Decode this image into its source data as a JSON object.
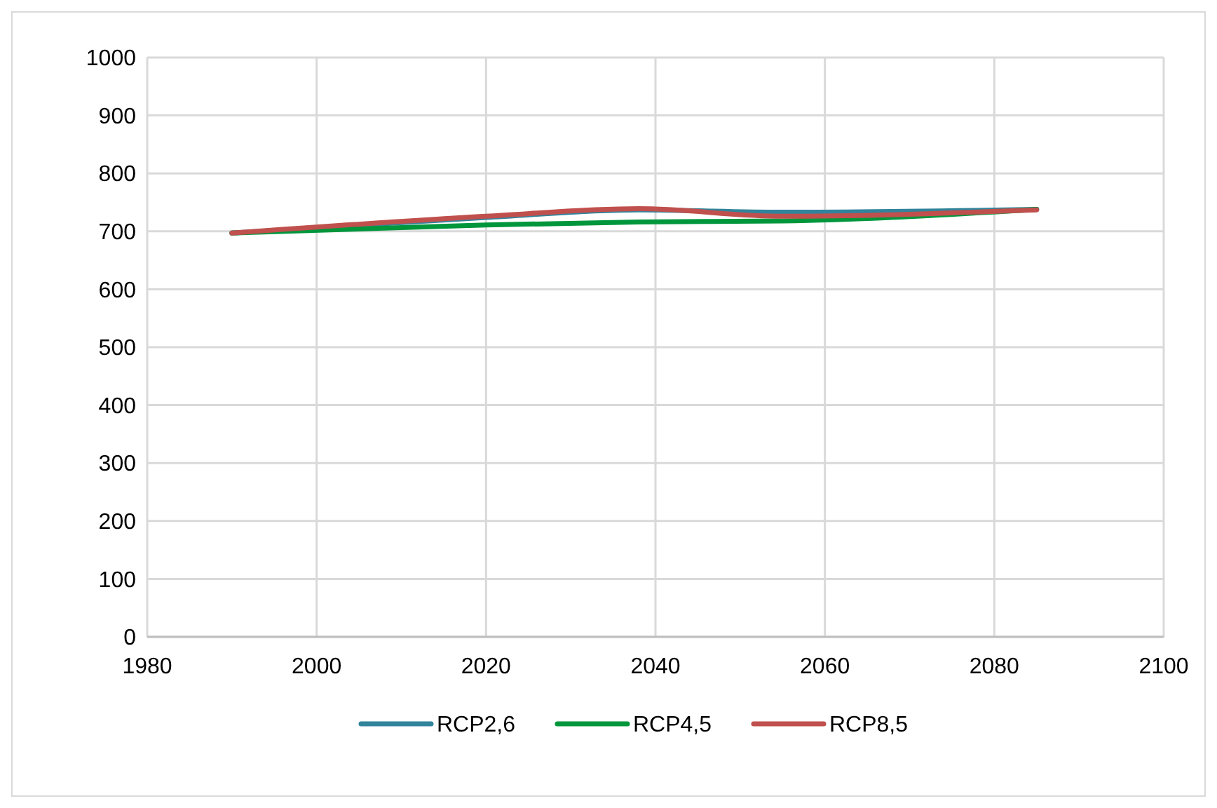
{
  "chart_data": {
    "type": "line",
    "x": [
      1990,
      2020,
      2038,
      2055,
      2085
    ],
    "series": [
      {
        "name": "RCP2,6",
        "color": "#31849b",
        "values": [
          697,
          724,
          737,
          733,
          738
        ]
      },
      {
        "name": "RCP4,5",
        "color": "#00963c",
        "values": [
          697,
          711,
          716,
          718,
          738
        ]
      },
      {
        "name": "RCP8,5",
        "color": "#c0504d",
        "values": [
          697,
          726,
          739,
          726,
          737
        ]
      }
    ],
    "xlim": [
      1980,
      2100
    ],
    "xticks": [
      1980,
      2000,
      2020,
      2040,
      2060,
      2080,
      2100
    ],
    "ylim": [
      0,
      1000
    ],
    "yticks": [
      0,
      100,
      200,
      300,
      400,
      500,
      600,
      700,
      800,
      900,
      1000
    ],
    "grid": true,
    "legend": "bottom",
    "marker": "none",
    "line_style": "solid"
  }
}
